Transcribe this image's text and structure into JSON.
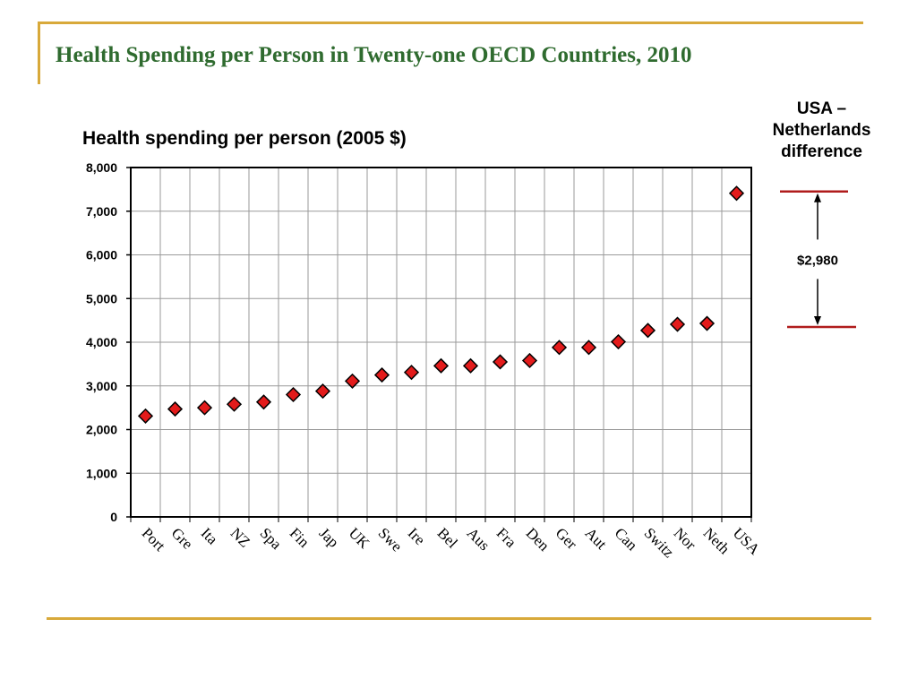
{
  "slide": {
    "title": "Health Spending per Person in Twenty-one OECD Countries, 2010"
  },
  "annotation": {
    "heading_lines": [
      "USA –",
      "Netherlands",
      "difference"
    ],
    "value_label": "$2,980",
    "from_country": "Neth",
    "to_country": "USA",
    "line_color": "#b01c1c"
  },
  "colors": {
    "title": "#2f6b2f",
    "frame": "#d8a93a",
    "marker_fill": "#e31b1b",
    "grid": "#9a9a9a"
  },
  "chart_data": {
    "type": "scatter",
    "title": "Health spending per person (2005 $)",
    "xlabel": "",
    "ylabel": "",
    "ylim": [
      0,
      8000
    ],
    "yticks": [
      0,
      1000,
      2000,
      3000,
      4000,
      5000,
      6000,
      7000,
      8000
    ],
    "ytick_labels": [
      "0",
      "1,000",
      "2,000",
      "3,000",
      "4,000",
      "5,000",
      "6,000",
      "7,000",
      "8,000"
    ],
    "grid": true,
    "marker": "diamond",
    "categories": [
      "Port",
      "Gre",
      "Ita",
      "NZ",
      "Spa",
      "Fin",
      "Jap",
      "UK",
      "Swe",
      "Ire",
      "Bel",
      "Aus",
      "Fra",
      "Den",
      "Ger",
      "Aut",
      "Can",
      "Switz",
      "Nor",
      "Neth",
      "USA"
    ],
    "values": [
      2310,
      2470,
      2500,
      2580,
      2630,
      2800,
      2880,
      3110,
      3250,
      3310,
      3460,
      3460,
      3550,
      3580,
      3880,
      3880,
      4010,
      4270,
      4410,
      4430,
      7410
    ]
  }
}
